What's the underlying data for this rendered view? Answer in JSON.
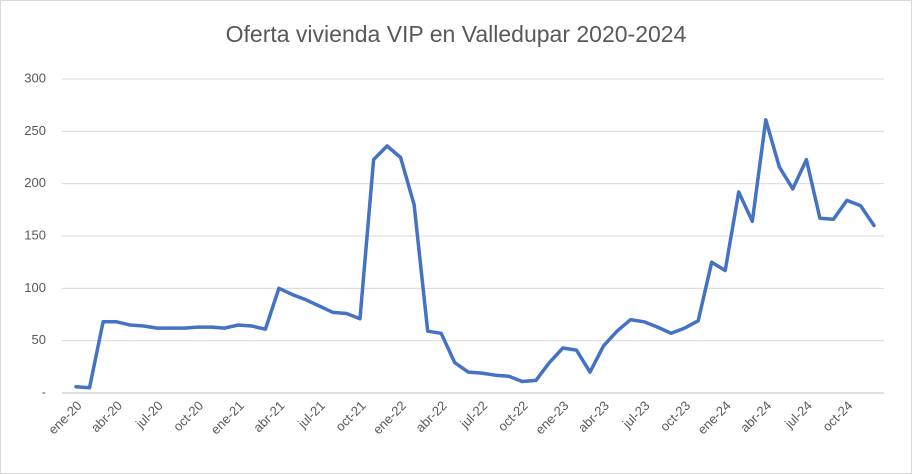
{
  "chart_data": {
    "type": "line",
    "title": "Oferta vivienda VIP en Valledupar 2020-2024",
    "categories": [
      "ene-20",
      null,
      null,
      "abr-20",
      null,
      null,
      "jul-20",
      null,
      null,
      "oct-20",
      null,
      null,
      "ene-21",
      null,
      null,
      "abr-21",
      null,
      null,
      "jul-21",
      null,
      null,
      "oct-21",
      null,
      null,
      "ene-22",
      null,
      null,
      "abr-22",
      null,
      null,
      "jul-22",
      null,
      null,
      "oct-22",
      null,
      null,
      "ene-23",
      null,
      null,
      "abr-23",
      null,
      null,
      "jul-23",
      null,
      null,
      "oct-23",
      null,
      null,
      "ene-24",
      null,
      null,
      "abr-24",
      null,
      null,
      "jul-24",
      null,
      null,
      "oct-24",
      null,
      null
    ],
    "series": [
      {
        "name": "Oferta",
        "color": "#4472c4",
        "values": [
          6,
          5,
          68,
          68,
          65,
          64,
          62,
          62,
          62,
          63,
          63,
          62,
          65,
          64,
          61,
          100,
          94,
          89,
          83,
          77,
          76,
          71,
          223,
          236,
          225,
          180,
          59,
          57,
          29,
          20,
          19,
          17,
          16,
          11,
          12,
          29,
          43,
          41,
          20,
          45,
          59,
          70,
          68,
          63,
          57,
          62,
          69,
          125,
          117,
          192,
          164,
          261,
          216,
          195,
          223,
          167,
          166,
          184,
          179,
          160
        ]
      }
    ],
    "ylim": [
      0,
      300
    ],
    "yticks": [
      {
        "value": 0,
        "label": "-"
      },
      50,
      100,
      150,
      200,
      250,
      300
    ],
    "grid": true
  }
}
